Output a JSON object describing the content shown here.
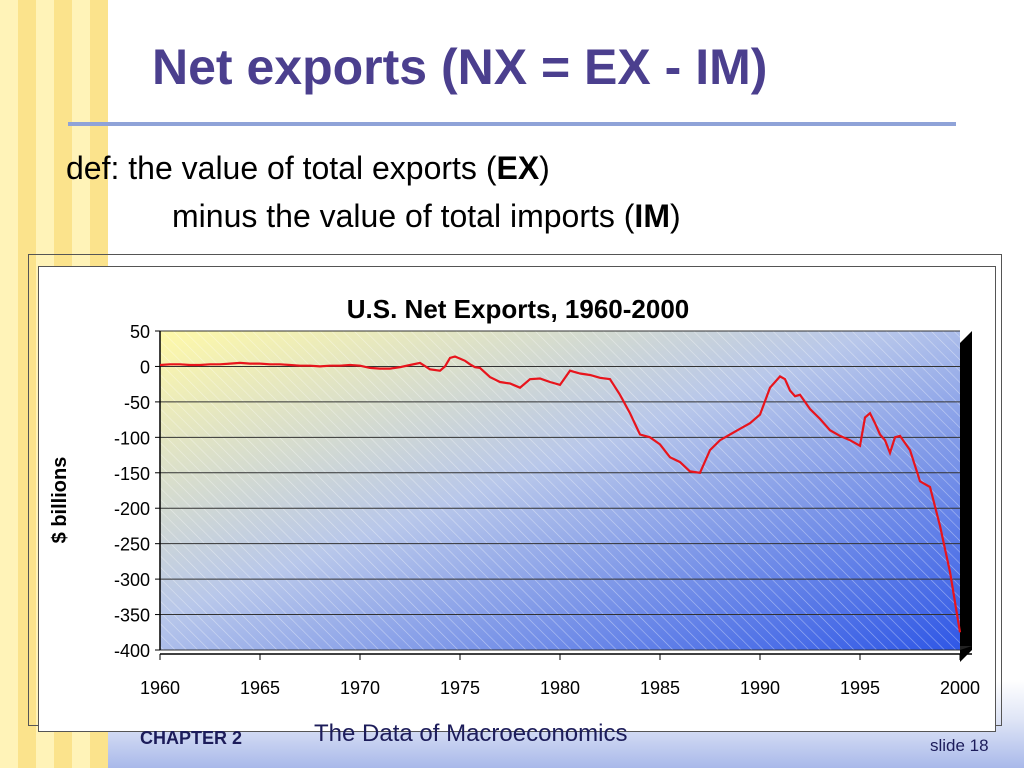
{
  "slide": {
    "title": "Net exports  (NX = EX - IM)",
    "definition_line1_prefix": "def:  the value of total exports (",
    "definition_line1_bold": "EX",
    "definition_line1_suffix": ")",
    "definition_line2_prefix": "minus the value of total imports (",
    "definition_line2_bold": "IM",
    "definition_line2_suffix": ")",
    "footer_chapter": "CHAPTER 2",
    "footer_title": "The Data of Macroeconomics",
    "footer_slide": "slide 18"
  },
  "colors": {
    "title": "#4b3f8e",
    "line": "#e8141c",
    "plot_top_left": "#fff9a8",
    "plot_bottom_right": "#2f57e6",
    "side_wall": "#000000"
  },
  "chart_data": {
    "type": "line",
    "title": "U.S. Net Exports, 1960-2000",
    "ylabel": "$ billions",
    "xlabel": "",
    "ylim": [
      -400,
      50
    ],
    "xlim": [
      1960,
      2000
    ],
    "yticks": [
      50,
      0,
      -50,
      -100,
      -150,
      -200,
      -250,
      -300,
      -350,
      -400
    ],
    "xticks": [
      1960,
      1965,
      1970,
      1975,
      1980,
      1985,
      1990,
      1995,
      2000
    ],
    "grid": true,
    "legend": "none",
    "series": [
      {
        "x": [
          1960,
          1960.5,
          1961,
          1961.5,
          1962,
          1962.5,
          1963,
          1963.5,
          1964,
          1964.5,
          1965,
          1965.5,
          1966,
          1966.5,
          1967,
          1967.5,
          1968,
          1968.5,
          1969,
          1969.5,
          1970,
          1970.5,
          1971,
          1971.5,
          1972,
          1972.5,
          1973,
          1973.5,
          1974,
          1974.25,
          1974.5,
          1974.75,
          1975,
          1975.25,
          1975.5,
          1975.75,
          1976,
          1976.5,
          1977,
          1977.5,
          1978,
          1978.5,
          1979,
          1979.5,
          1980,
          1980.5,
          1981,
          1981.5,
          1982,
          1982.5,
          1983,
          1983.5,
          1984,
          1984.5,
          1985,
          1985.5,
          1986,
          1986.5,
          1987,
          1987.5,
          1988,
          1988.5,
          1989,
          1989.5,
          1990,
          1990.5,
          1991,
          1991.25,
          1991.5,
          1991.75,
          1992,
          1992.5,
          1993,
          1993.5,
          1994,
          1994.5,
          1995,
          1995.25,
          1995.5,
          1995.75,
          1996,
          1996.25,
          1996.5,
          1996.75,
          1997,
          1997.5,
          1998,
          1998.5,
          1999,
          1999.5,
          2000
        ],
        "values": [
          2,
          3,
          3,
          2,
          2,
          3,
          3,
          4,
          5,
          4,
          4,
          3,
          3,
          2,
          1,
          1,
          0,
          1,
          1,
          2,
          1,
          -2,
          -3,
          -3,
          -1,
          2,
          5,
          -4,
          -6,
          0,
          12,
          14,
          11,
          8,
          3,
          -1,
          -2,
          -15,
          -22,
          -24,
          -30,
          -18,
          -17,
          -22,
          -26,
          -6,
          -10,
          -12,
          -16,
          -18,
          -40,
          -66,
          -96,
          -100,
          -110,
          -128,
          -135,
          -148,
          -150,
          -118,
          -104,
          -96,
          -88,
          -80,
          -68,
          -30,
          -14,
          -18,
          -34,
          -42,
          -40,
          -60,
          -74,
          -90,
          -98,
          -104,
          -112,
          -72,
          -66,
          -80,
          -96,
          -104,
          -122,
          -100,
          -98,
          -118,
          -162,
          -170,
          -225,
          -290,
          -375
        ]
      }
    ]
  }
}
